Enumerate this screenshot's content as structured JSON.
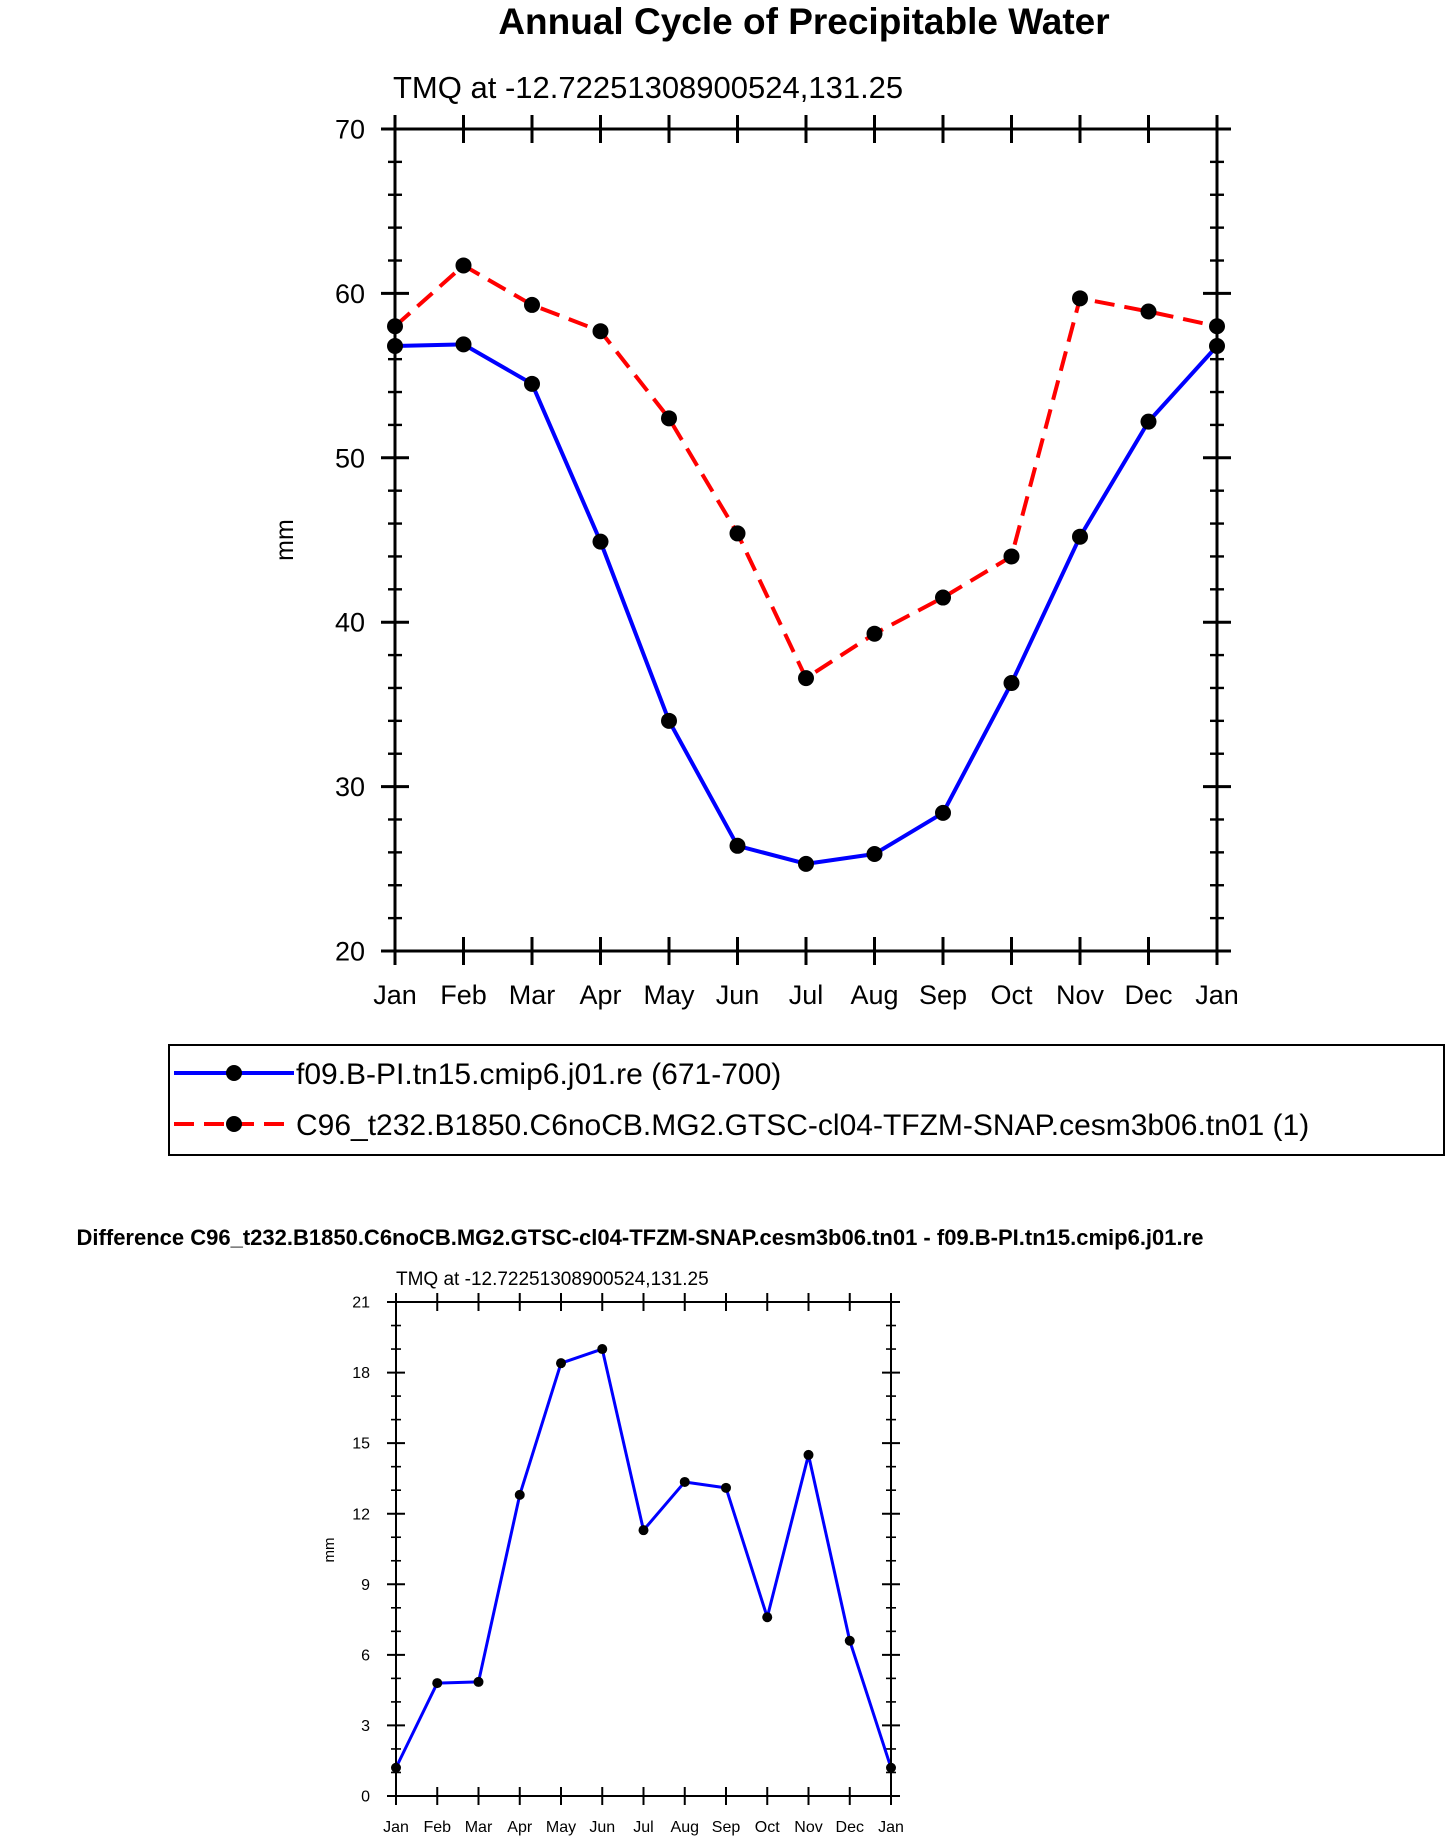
{
  "chart_data": [
    {
      "type": "line",
      "title": "Annual Cycle of Precipitable Water",
      "subtitle": "TMQ at -12.72251308900524,131.25",
      "xlabel": "",
      "ylabel": "mm",
      "ylim": [
        20,
        70
      ],
      "yticks": [
        20,
        30,
        40,
        50,
        60,
        70
      ],
      "categories": [
        "Jan",
        "Feb",
        "Mar",
        "Apr",
        "May",
        "Jun",
        "Jul",
        "Aug",
        "Sep",
        "Oct",
        "Nov",
        "Dec",
        "Jan"
      ],
      "grid": false,
      "legend_position": "bottom",
      "series": [
        {
          "name": "f09.B-PI.tn15.cmip6.j01.re (671-700)",
          "color": "#0000ff",
          "dash": "solid",
          "marker": "filled-circle",
          "values": [
            56.8,
            56.9,
            54.5,
            44.9,
            34.0,
            26.4,
            25.3,
            25.9,
            28.4,
            36.3,
            45.2,
            52.2,
            56.8
          ]
        },
        {
          "name": "C96_t232.B1850.C6noCB.MG2.GTSC-cl04-TFZM-SNAP.cesm3b06.tn01 (1)",
          "color": "#ff0000",
          "dash": "dashed",
          "marker": "filled-circle",
          "values": [
            58.0,
            61.7,
            59.3,
            57.7,
            52.4,
            45.4,
            36.6,
            39.3,
            41.5,
            44.0,
            59.7,
            58.9,
            58.0
          ]
        }
      ]
    },
    {
      "type": "line",
      "title": "Difference C96_t232.B1850.C6noCB.MG2.GTSC-cl04-TFZM-SNAP.cesm3b06.tn01 - f09.B-PI.tn15.cmip6.j01.re",
      "subtitle": "TMQ at -12.72251308900524,131.25",
      "xlabel": "",
      "ylabel": "mm",
      "ylim": [
        0,
        21
      ],
      "yticks": [
        0,
        3,
        6,
        9,
        12,
        15,
        18,
        21
      ],
      "categories": [
        "Jan",
        "Feb",
        "Mar",
        "Apr",
        "May",
        "Jun",
        "Jul",
        "Aug",
        "Sep",
        "Oct",
        "Nov",
        "Dec",
        "Jan"
      ],
      "grid": false,
      "series": [
        {
          "name": "Difference",
          "color": "#0000ff",
          "dash": "solid",
          "marker": "filled-circle",
          "values": [
            1.2,
            4.8,
            4.85,
            12.8,
            18.4,
            19.0,
            11.3,
            13.35,
            13.1,
            7.6,
            14.5,
            6.6,
            1.2
          ]
        }
      ]
    }
  ]
}
